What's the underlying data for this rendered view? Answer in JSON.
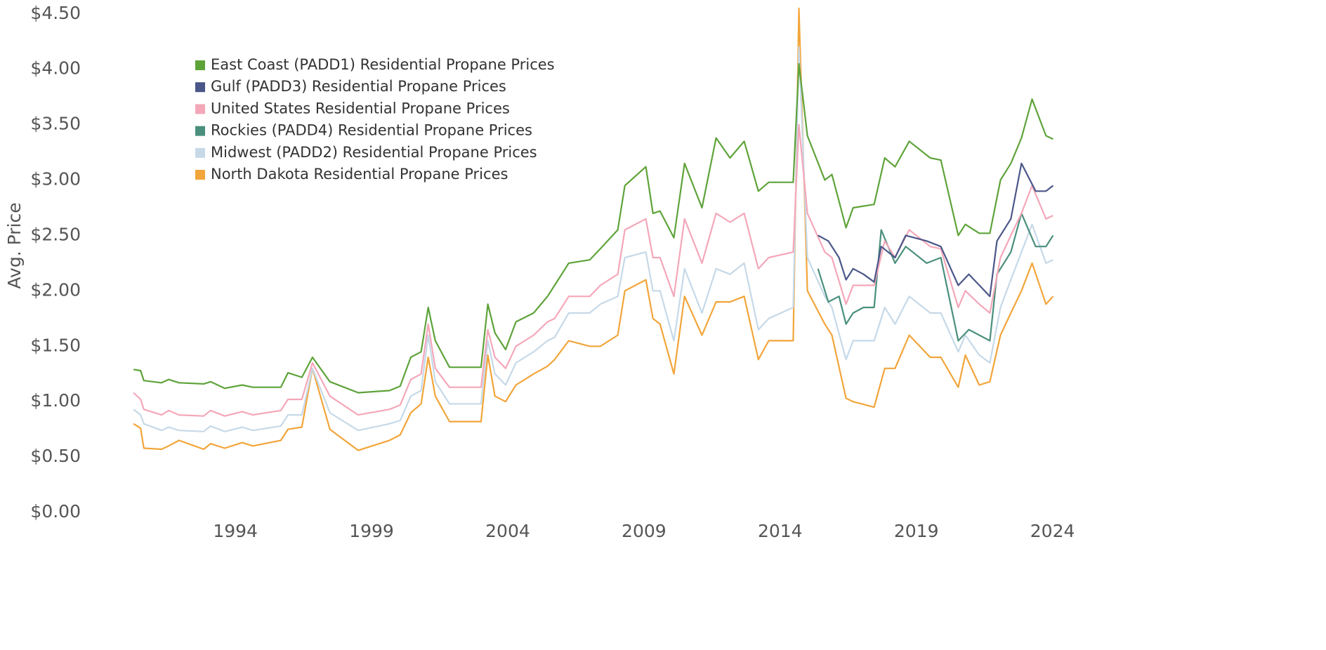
{
  "chart_data": {
    "type": "line",
    "y_label": "Avg. Price",
    "xlim": [
      1990,
      2024.5
    ],
    "xticks": [
      1994,
      1999,
      2004,
      2009,
      2014,
      2019,
      2024
    ],
    "ylim": [
      0,
      4.6
    ],
    "yticks": [
      {
        "value": 0,
        "label": "$0.00"
      },
      {
        "value": 0.5,
        "label": "$0.50"
      },
      {
        "value": 1,
        "label": "$1.00"
      },
      {
        "value": 1.5,
        "label": "$1.50"
      },
      {
        "value": 2,
        "label": "$2.00"
      },
      {
        "value": 2.5,
        "label": "$2.50"
      },
      {
        "value": 3,
        "label": "$3.00"
      },
      {
        "value": 3.5,
        "label": "$3.50"
      },
      {
        "value": 4,
        "label": "$4.00"
      },
      {
        "value": 4.5,
        "label": "$4.50"
      }
    ],
    "grid": false,
    "series": [
      {
        "name": "East Coast (PADD1) Residential Propane Prices",
        "color": "#5ea33a",
        "x": [
          1990.26,
          1990.52,
          1990.64,
          1991.29,
          1991.55,
          1991.93,
          1992.84,
          1993.09,
          1993.61,
          1994.25,
          1994.64,
          1995.67,
          1995.93,
          1996.44,
          1996.83,
          1997.47,
          1998.51,
          1999.66,
          2000.05,
          2000.44,
          2000.82,
          2001.08,
          2001.34,
          2001.86,
          2003.02,
          2003.27,
          2003.53,
          2003.92,
          2004.3,
          2004.95,
          2005.46,
          2005.72,
          2006.24,
          2007.01,
          2007.4,
          2008.04,
          2008.3,
          2009.07,
          2009.33,
          2009.59,
          2010.1,
          2010.49,
          2011.13,
          2011.65,
          2012.16,
          2012.68,
          2013.2,
          2013.58,
          2014.48,
          2014.69,
          2015.0,
          2015.64,
          2015.9,
          2016.42,
          2016.68,
          2017.45,
          2017.84,
          2018.22,
          2018.74,
          2019.51,
          2019.9,
          2020.54,
          2020.8,
          2021.31,
          2021.7,
          2022.09,
          2022.47,
          2022.86,
          2023.25,
          2023.76,
          2024.02
        ],
        "values": [
          1.29,
          1.28,
          1.19,
          1.17,
          1.2,
          1.17,
          1.16,
          1.18,
          1.12,
          1.15,
          1.13,
          1.13,
          1.26,
          1.22,
          1.4,
          1.18,
          1.08,
          1.1,
          1.14,
          1.4,
          1.45,
          1.85,
          1.55,
          1.31,
          1.31,
          1.88,
          1.62,
          1.47,
          1.72,
          1.8,
          1.95,
          2.05,
          2.25,
          2.28,
          2.38,
          2.55,
          2.95,
          3.12,
          2.7,
          2.72,
          2.48,
          3.15,
          2.75,
          3.38,
          3.2,
          3.35,
          2.9,
          2.98,
          2.98,
          4.05,
          3.4,
          3.0,
          3.05,
          2.57,
          2.75,
          2.78,
          3.2,
          3.12,
          3.35,
          3.2,
          3.18,
          2.5,
          2.6,
          2.52,
          2.52,
          3.0,
          3.15,
          3.38,
          3.73,
          3.4,
          3.37
        ]
      },
      {
        "name": "Gulf (PADD3) Residential Propane Prices",
        "color": "#4b5789",
        "x": [
          2015.39,
          2015.77,
          2016.16,
          2016.42,
          2016.68,
          2017.06,
          2017.45,
          2017.71,
          2018.22,
          2018.61,
          2019.38,
          2019.9,
          2020.54,
          2020.93,
          2021.7,
          2021.96,
          2022.47,
          2022.86,
          2023.38,
          2023.76,
          2024.02
        ],
        "values": [
          2.5,
          2.45,
          2.3,
          2.1,
          2.2,
          2.15,
          2.08,
          2.4,
          2.3,
          2.5,
          2.45,
          2.4,
          2.05,
          2.15,
          1.95,
          2.45,
          2.65,
          3.15,
          2.9,
          2.9,
          2.95
        ]
      },
      {
        "name": "United States Residential Propane Prices",
        "color": "#f4a7b9",
        "x": [
          1990.26,
          1990.52,
          1990.64,
          1991.29,
          1991.55,
          1991.93,
          1992.84,
          1993.09,
          1993.61,
          1994.25,
          1994.64,
          1995.67,
          1995.93,
          1996.44,
          1996.83,
          1997.47,
          1998.51,
          1999.66,
          2000.05,
          2000.44,
          2000.82,
          2001.08,
          2001.34,
          2001.86,
          2003.02,
          2003.27,
          2003.53,
          2003.92,
          2004.3,
          2004.95,
          2005.46,
          2005.72,
          2006.24,
          2007.01,
          2007.4,
          2008.04,
          2008.3,
          2009.07,
          2009.33,
          2009.59,
          2010.1,
          2010.49,
          2011.13,
          2011.65,
          2012.16,
          2012.68,
          2013.2,
          2013.58,
          2014.48,
          2014.69,
          2015.0,
          2015.64,
          2015.9,
          2016.42,
          2016.68,
          2017.45,
          2017.84,
          2018.22,
          2018.74,
          2019.51,
          2019.9,
          2020.54,
          2020.8,
          2021.31,
          2021.7,
          2022.09,
          2022.47,
          2022.86,
          2023.25,
          2023.76,
          2024.02
        ],
        "values": [
          1.08,
          1.02,
          0.93,
          0.88,
          0.92,
          0.88,
          0.87,
          0.92,
          0.87,
          0.91,
          0.88,
          0.92,
          1.02,
          1.02,
          1.35,
          1.05,
          0.88,
          0.93,
          0.97,
          1.2,
          1.25,
          1.7,
          1.3,
          1.13,
          1.13,
          1.65,
          1.4,
          1.3,
          1.5,
          1.6,
          1.72,
          1.75,
          1.95,
          1.95,
          2.05,
          2.15,
          2.55,
          2.65,
          2.3,
          2.3,
          1.95,
          2.65,
          2.25,
          2.7,
          2.62,
          2.7,
          2.2,
          2.3,
          2.35,
          3.5,
          2.7,
          2.35,
          2.3,
          1.88,
          2.05,
          2.05,
          2.45,
          2.3,
          2.55,
          2.4,
          2.38,
          1.85,
          2.0,
          1.88,
          1.8,
          2.3,
          2.5,
          2.7,
          2.95,
          2.65,
          2.68
        ]
      },
      {
        "name": "Rockies (PADD4) Residential Propane Prices",
        "color": "#4a8f7d",
        "x": [
          2015.39,
          2015.77,
          2016.16,
          2016.42,
          2016.68,
          2017.06,
          2017.45,
          2017.71,
          2018.22,
          2018.61,
          2019.38,
          2019.9,
          2020.54,
          2020.93,
          2021.7,
          2021.96,
          2022.47,
          2022.86,
          2023.38,
          2023.76,
          2024.02
        ],
        "values": [
          2.2,
          1.9,
          1.95,
          1.7,
          1.8,
          1.85,
          1.85,
          2.55,
          2.25,
          2.4,
          2.25,
          2.3,
          1.55,
          1.65,
          1.55,
          2.15,
          2.35,
          2.7,
          2.4,
          2.4,
          2.5
        ]
      },
      {
        "name": "Midwest (PADD2) Residential Propane Prices",
        "color": "#c6d9e8",
        "x": [
          1990.26,
          1990.52,
          1990.64,
          1991.29,
          1991.55,
          1991.93,
          1992.84,
          1993.09,
          1993.61,
          1994.25,
          1994.64,
          1995.67,
          1995.93,
          1996.44,
          1996.83,
          1997.47,
          1998.51,
          1999.66,
          2000.05,
          2000.44,
          2000.82,
          2001.08,
          2001.34,
          2001.86,
          2003.02,
          2003.27,
          2003.53,
          2003.92,
          2004.3,
          2004.95,
          2005.46,
          2005.72,
          2006.24,
          2007.01,
          2007.4,
          2008.04,
          2008.3,
          2009.07,
          2009.33,
          2009.59,
          2010.1,
          2010.49,
          2011.13,
          2011.65,
          2012.16,
          2012.68,
          2013.2,
          2013.58,
          2014.48,
          2014.69,
          2015.0,
          2015.64,
          2015.9,
          2016.42,
          2016.68,
          2017.45,
          2017.84,
          2018.22,
          2018.74,
          2019.51,
          2019.9,
          2020.54,
          2020.8,
          2021.31,
          2021.7,
          2022.09,
          2022.47,
          2022.86,
          2023.25,
          2023.76,
          2024.02
        ],
        "values": [
          0.93,
          0.88,
          0.8,
          0.74,
          0.77,
          0.74,
          0.73,
          0.78,
          0.73,
          0.77,
          0.74,
          0.78,
          0.88,
          0.88,
          1.3,
          0.9,
          0.74,
          0.8,
          0.83,
          1.05,
          1.1,
          1.6,
          1.18,
          0.98,
          0.98,
          1.55,
          1.25,
          1.15,
          1.35,
          1.45,
          1.55,
          1.58,
          1.8,
          1.8,
          1.88,
          1.95,
          2.3,
          2.35,
          2.0,
          2.0,
          1.55,
          2.2,
          1.8,
          2.2,
          2.15,
          2.25,
          1.65,
          1.75,
          1.85,
          4.2,
          2.3,
          1.95,
          1.85,
          1.38,
          1.55,
          1.55,
          1.85,
          1.7,
          1.95,
          1.8,
          1.8,
          1.45,
          1.6,
          1.42,
          1.35,
          1.85,
          2.1,
          2.35,
          2.6,
          2.25,
          2.28
        ]
      },
      {
        "name": "North Dakota Residential Propane Prices",
        "color": "#f2a53a",
        "x": [
          1990.26,
          1990.52,
          1990.64,
          1991.29,
          1991.55,
          1991.93,
          1992.84,
          1993.09,
          1993.61,
          1994.25,
          1994.64,
          1995.67,
          1995.93,
          1996.44,
          1996.83,
          1997.47,
          1998.51,
          1999.66,
          2000.05,
          2000.44,
          2000.82,
          2001.08,
          2001.34,
          2001.86,
          2003.02,
          2003.27,
          2003.53,
          2003.92,
          2004.3,
          2004.95,
          2005.46,
          2005.72,
          2006.24,
          2007.01,
          2007.4,
          2008.04,
          2008.3,
          2009.07,
          2009.33,
          2009.59,
          2010.1,
          2010.49,
          2011.13,
          2011.65,
          2012.16,
          2012.68,
          2013.2,
          2013.58,
          2014.48,
          2014.69,
          2015.0,
          2015.64,
          2015.9,
          2016.42,
          2016.68,
          2017.45,
          2017.84,
          2018.22,
          2018.74,
          2019.51,
          2019.9,
          2020.54,
          2020.8,
          2021.31,
          2021.7,
          2022.09,
          2022.47,
          2022.86,
          2023.25,
          2023.76,
          2024.02
        ],
        "values": [
          0.8,
          0.76,
          0.58,
          0.57,
          0.6,
          0.65,
          0.57,
          0.62,
          0.58,
          0.63,
          0.6,
          0.65,
          0.75,
          0.77,
          1.3,
          0.75,
          0.56,
          0.65,
          0.7,
          0.9,
          0.98,
          1.4,
          1.05,
          0.82,
          0.82,
          1.42,
          1.05,
          1.0,
          1.15,
          1.25,
          1.32,
          1.38,
          1.55,
          1.5,
          1.5,
          1.6,
          2.0,
          2.1,
          1.75,
          1.7,
          1.25,
          1.95,
          1.6,
          1.9,
          1.9,
          1.95,
          1.38,
          1.55,
          1.55,
          4.55,
          2.0,
          1.7,
          1.6,
          1.03,
          1.0,
          0.95,
          1.3,
          1.3,
          1.6,
          1.4,
          1.4,
          1.13,
          1.42,
          1.15,
          1.18,
          1.6,
          1.8,
          2.0,
          2.25,
          1.88,
          1.95
        ]
      }
    ]
  }
}
